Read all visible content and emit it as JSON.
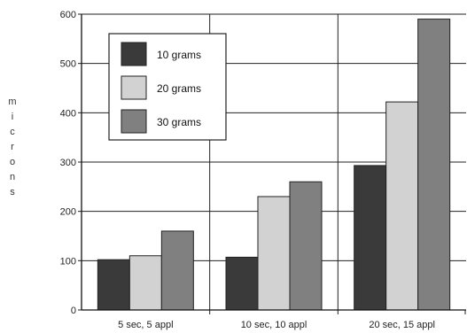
{
  "chart_data": {
    "type": "bar",
    "title": "",
    "xlabel": "",
    "ylabel": "microns",
    "ylim": [
      0,
      600
    ],
    "yticks": [
      0,
      100,
      200,
      300,
      400,
      500,
      600
    ],
    "grid": true,
    "legend_position": "top-left",
    "categories": [
      "5 sec, 5 appl",
      "10 sec, 10 appl",
      "20 sec, 15 appl"
    ],
    "series": [
      {
        "name": "10 grams",
        "color": "#3a3a3a",
        "values": [
          102,
          107,
          293
        ]
      },
      {
        "name": "20 grams",
        "color": "#d2d2d2",
        "values": [
          110,
          230,
          422
        ]
      },
      {
        "name": "30 grams",
        "color": "#808080",
        "values": [
          160,
          260,
          590
        ]
      }
    ]
  }
}
